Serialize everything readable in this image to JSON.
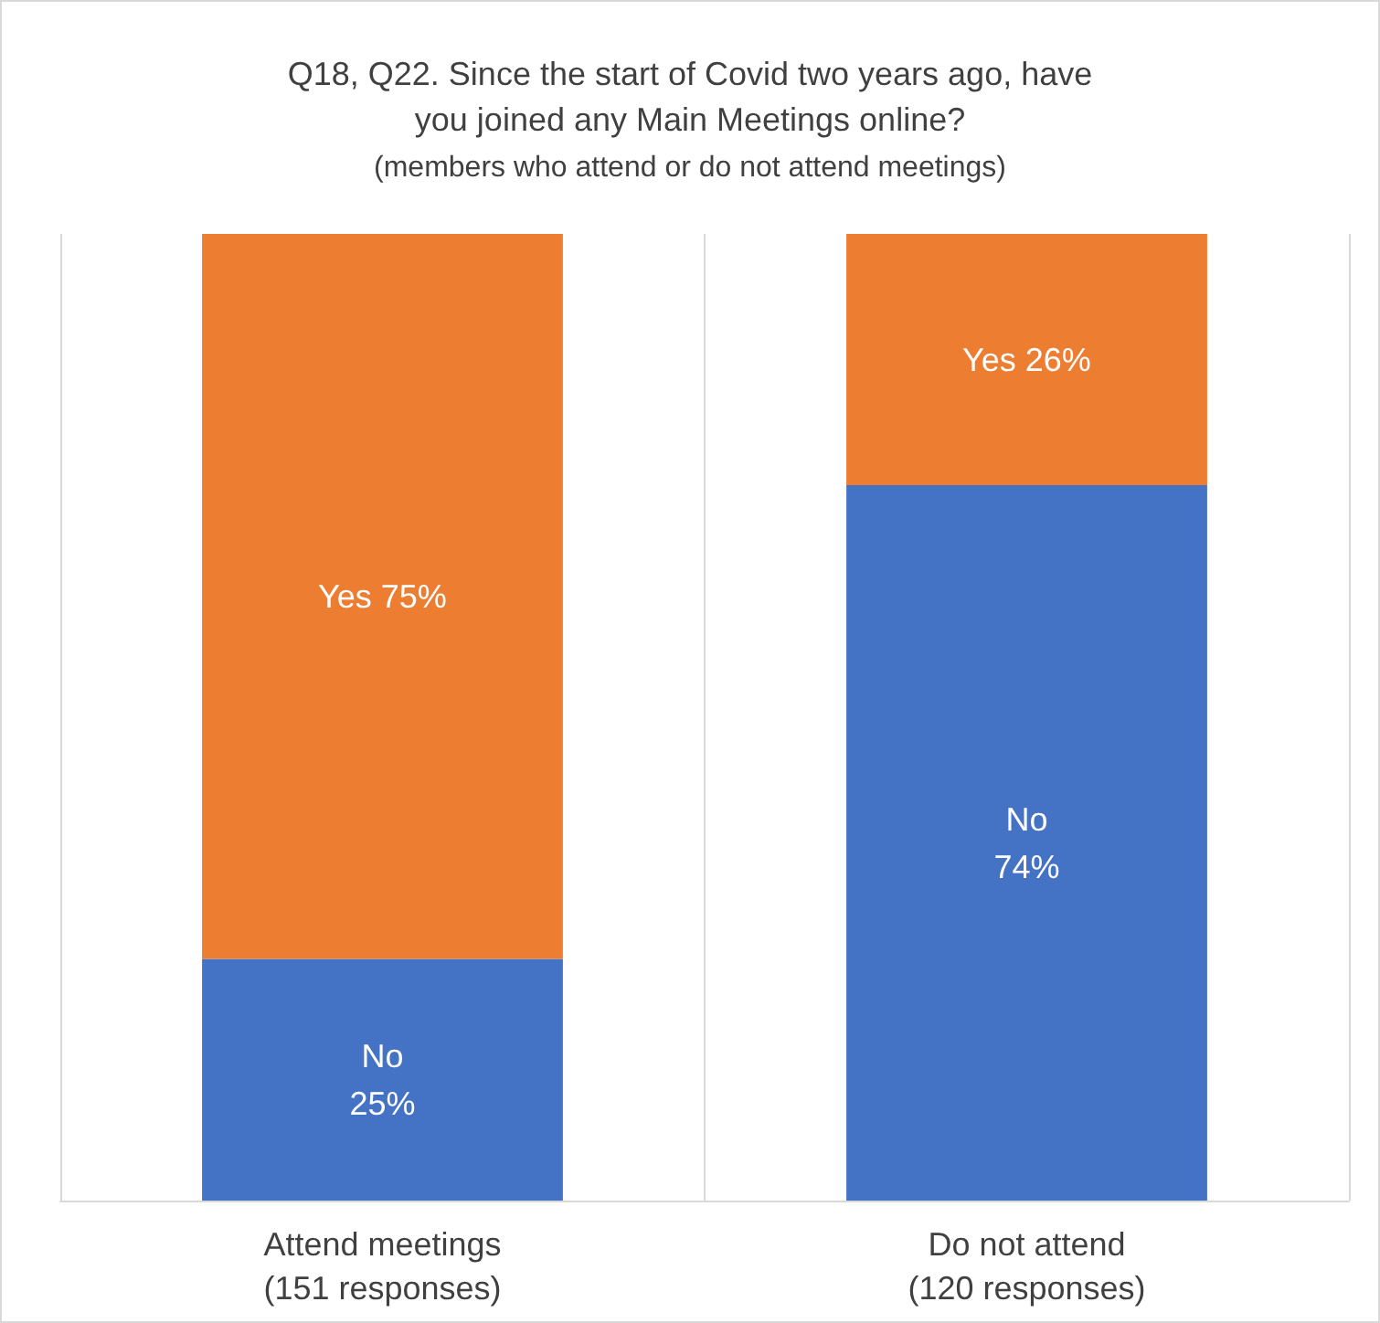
{
  "chart_data": {
    "type": "bar",
    "title": "Q18, Q22. Since the start of Covid two years ago, have\nyou joined any Main Meetings online?",
    "subtitle": "(members who attend or do not attend meetings)",
    "categories": [
      "Attend meetings\n(151 responses)",
      "Do not attend\n(120 responses)"
    ],
    "stacked": true,
    "grid": "x",
    "legend": false,
    "series": [
      {
        "name": "No",
        "color": "#4472c4",
        "values": [
          25,
          74
        ],
        "value_labels": [
          "25%",
          "74%"
        ]
      },
      {
        "name": "Yes",
        "color": "#ed7d31",
        "values": [
          75,
          26
        ],
        "value_labels": [
          "75%",
          "26%"
        ]
      }
    ]
  }
}
